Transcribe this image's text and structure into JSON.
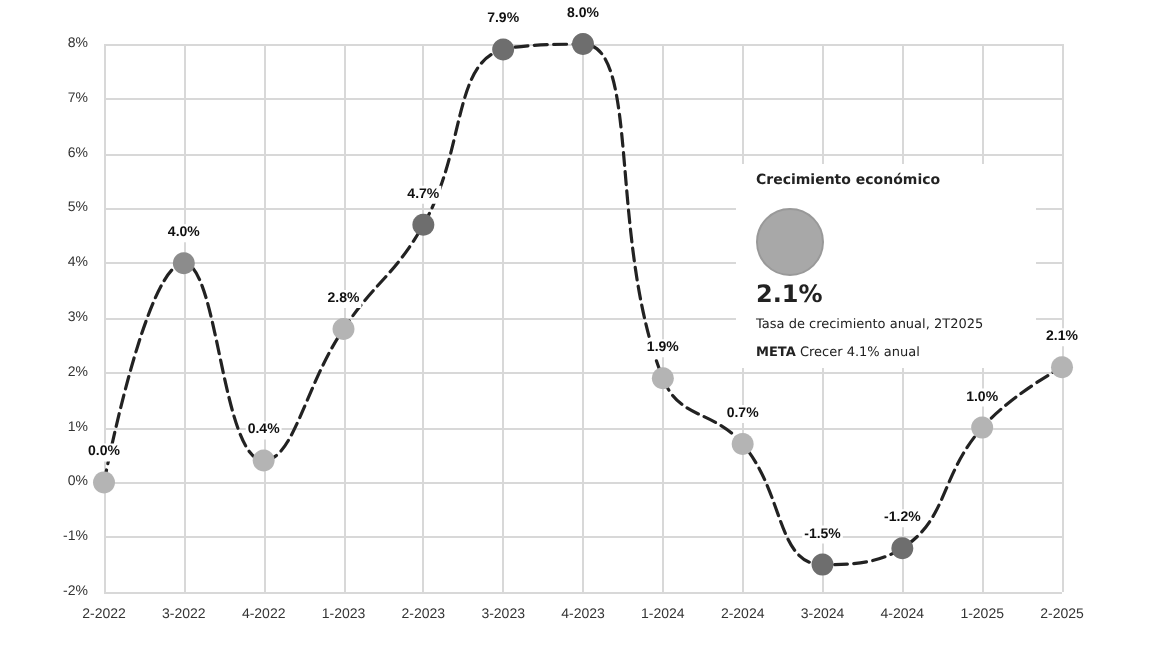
{
  "chart_data": {
    "type": "line",
    "categories": [
      "2-2022",
      "3-2022",
      "4-2022",
      "1-2023",
      "2-2023",
      "3-2023",
      "4-2023",
      "1-2024",
      "2-2024",
      "3-2024",
      "4-2024",
      "1-2025",
      "2-2025"
    ],
    "series": [
      {
        "color": "#222222",
        "colors": [
          "#b4b4b4",
          "#8c8c8c",
          "#b4b4b4",
          "#b4b4b4",
          "#6e6e6e",
          "#6e6e6e",
          "#6e6e6e",
          "#b4b4b4",
          "#b4b4b4",
          "#6e6e6e",
          "#6e6e6e",
          "#b4b4b4",
          "#b4b4b4"
        ],
        "values": [
          0.0,
          4.0,
          0.4,
          2.8,
          4.7,
          7.9,
          8.0,
          1.9,
          0.7,
          -1.5,
          -1.2,
          1.0,
          2.1
        ],
        "value_labels": [
          "0.0%",
          "4.0%",
          "0.4%",
          "2.8%",
          "4.7%",
          "7.9%",
          "8.0%",
          "1.9%",
          "0.7%",
          "-1.5%",
          "-1.2%",
          "1.0%",
          "2.1%"
        ]
      }
    ],
    "ylim": [
      -2,
      8
    ],
    "yticks": [
      {
        "value": -2,
        "label": "-2%"
      },
      {
        "value": -1,
        "label": "-1%"
      },
      {
        "value": 0,
        "label": "0%"
      },
      {
        "value": 1,
        "label": "1%"
      },
      {
        "value": 2,
        "label": "2%"
      },
      {
        "value": 3,
        "label": "3%"
      },
      {
        "value": 4,
        "label": "4%"
      },
      {
        "value": 5,
        "label": "5%"
      },
      {
        "value": 6,
        "label": "6%"
      },
      {
        "value": 7,
        "label": "7%"
      },
      {
        "value": 8,
        "label": "8%"
      }
    ],
    "annotations": [
      "Crecimiento económico",
      "2.1%",
      "Tasa de crecimiento anual, 2T2025",
      "META Crecer 4.1% anual"
    ],
    "grid": true,
    "marker": "circle",
    "line_style": "dashed"
  }
}
